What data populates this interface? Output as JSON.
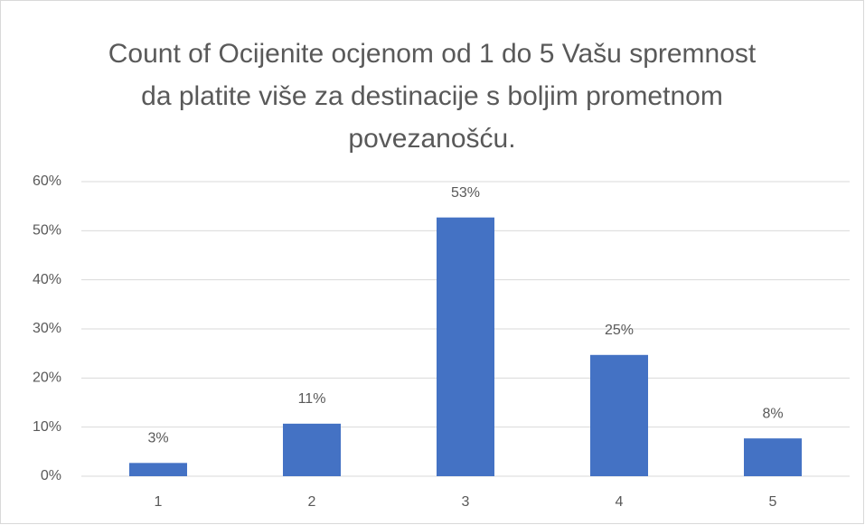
{
  "chart_data": {
    "type": "bar",
    "title": "Count of Ocijenite ocjenom od 1 do 5 Vašu spremnost da platite više za destinacije s boljim prometnom povezanošću.",
    "categories": [
      "1",
      "2",
      "3",
      "4",
      "5"
    ],
    "values": [
      2.7,
      10.7,
      52.7,
      24.7,
      7.7
    ],
    "value_labels": [
      "3%",
      "11%",
      "53%",
      "25%",
      "8%"
    ],
    "color": "#4472c4",
    "ylim": [
      0,
      60
    ],
    "yticks": [
      {
        "value": 0,
        "label": "0%"
      },
      {
        "value": 10,
        "label": "10%"
      },
      {
        "value": 20,
        "label": "20%"
      },
      {
        "value": 30,
        "label": "30%"
      },
      {
        "value": 40,
        "label": "40%"
      },
      {
        "value": 50,
        "label": "50%"
      },
      {
        "value": 60,
        "label": "60%"
      }
    ],
    "grid": true
  }
}
